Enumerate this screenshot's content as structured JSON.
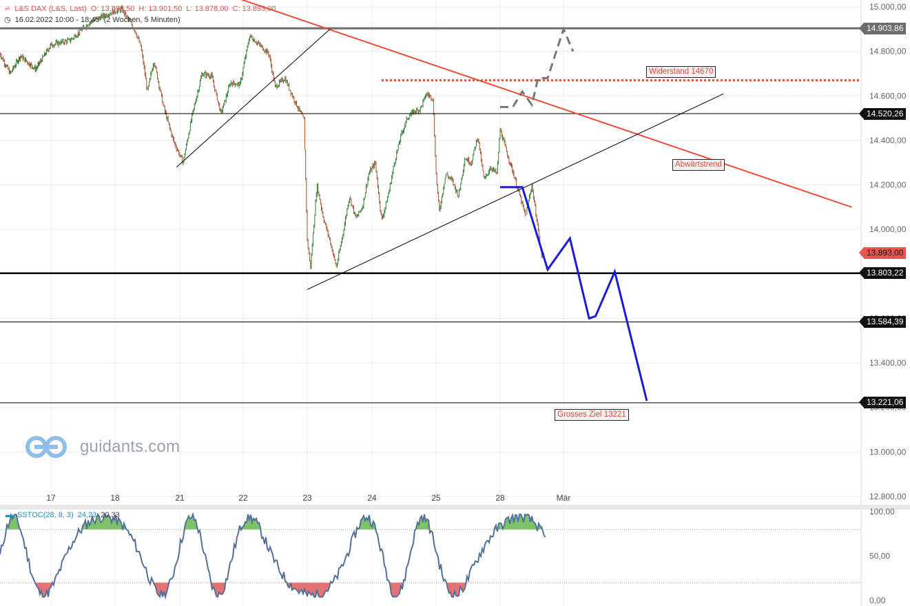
{
  "header": {
    "instrument": "L&S DAX (L&S, Last)",
    "open": "O: 13.899,50",
    "high": "H: 13.901,50",
    "low": "L: 13.878,00",
    "close": "C: 13.893,00",
    "range": "16.02.2022 10:00 - 18:45",
    "timeframe": "(2 Wochen, 5 Minuten)"
  },
  "colors": {
    "up": "#2e7d32",
    "down": "#a0522d",
    "trend_red": "#ee4b35",
    "forecast_blue": "#1a1adb",
    "forecast_gray": "#777777",
    "stoch_line": "#52709a",
    "stoch_hi": "#7cc36a",
    "stoch_lo": "#e57373"
  },
  "watermark": {
    "text": "guidants.com",
    "icon": "guidants-logo-icon"
  },
  "chart_data": {
    "type": "candlestick",
    "y_axis_ticks": [
      "15.000,00",
      "14.800,00",
      "14.600,00",
      "14.400,00",
      "14.200,00",
      "14.000,00",
      "13.800,00",
      "13.600,00",
      "13.400,00",
      "13.200,00",
      "13.000,00",
      "12.800,00"
    ],
    "ylim": [
      12800,
      15000
    ],
    "x_axis_ticks": [
      "17",
      "18",
      "21",
      "22",
      "23",
      "24",
      "25",
      "28",
      "Mär"
    ],
    "price_path": [
      {
        "d": 0.0,
        "p": 14790
      },
      {
        "d": 0.2,
        "p": 14700
      },
      {
        "d": 0.4,
        "p": 14780
      },
      {
        "d": 0.7,
        "p": 14720
      },
      {
        "d": 1.0,
        "p": 14830
      },
      {
        "d": 1.3,
        "p": 14850
      },
      {
        "d": 1.6,
        "p": 14930
      },
      {
        "d": 1.9,
        "p": 14970
      },
      {
        "d": 2.1,
        "p": 14990
      },
      {
        "d": 2.3,
        "p": 14900
      },
      {
        "d": 2.4,
        "p": 14820
      },
      {
        "d": 2.5,
        "p": 14620
      },
      {
        "d": 2.6,
        "p": 14760
      },
      {
        "d": 2.75,
        "p": 14550
      },
      {
        "d": 2.9,
        "p": 14400
      },
      {
        "d": 3.05,
        "p": 14300
      },
      {
        "d": 3.2,
        "p": 14520
      },
      {
        "d": 3.35,
        "p": 14700
      },
      {
        "d": 3.5,
        "p": 14690
      },
      {
        "d": 3.65,
        "p": 14520
      },
      {
        "d": 3.8,
        "p": 14660
      },
      {
        "d": 3.95,
        "p": 14650
      },
      {
        "d": 4.1,
        "p": 14870
      },
      {
        "d": 4.25,
        "p": 14830
      },
      {
        "d": 4.4,
        "p": 14790
      },
      {
        "d": 4.5,
        "p": 14640
      },
      {
        "d": 4.65,
        "p": 14680
      },
      {
        "d": 4.8,
        "p": 14580
      },
      {
        "d": 4.95,
        "p": 14490
      },
      {
        "d": 5.0,
        "p": 13950
      },
      {
        "d": 5.05,
        "p": 13830
      },
      {
        "d": 5.15,
        "p": 14200
      },
      {
        "d": 5.25,
        "p": 14050
      },
      {
        "d": 5.35,
        "p": 13950
      },
      {
        "d": 5.45,
        "p": 13830
      },
      {
        "d": 5.55,
        "p": 13980
      },
      {
        "d": 5.65,
        "p": 14150
      },
      {
        "d": 5.75,
        "p": 14050
      },
      {
        "d": 5.85,
        "p": 14100
      },
      {
        "d": 5.95,
        "p": 14250
      },
      {
        "d": 6.05,
        "p": 14300
      },
      {
        "d": 6.15,
        "p": 14040
      },
      {
        "d": 6.25,
        "p": 14150
      },
      {
        "d": 6.35,
        "p": 14300
      },
      {
        "d": 6.45,
        "p": 14420
      },
      {
        "d": 6.55,
        "p": 14500
      },
      {
        "d": 6.65,
        "p": 14530
      },
      {
        "d": 6.75,
        "p": 14540
      },
      {
        "d": 6.85,
        "p": 14610
      },
      {
        "d": 6.95,
        "p": 14590
      },
      {
        "d": 7.0,
        "p": 14250
      },
      {
        "d": 7.05,
        "p": 14080
      },
      {
        "d": 7.15,
        "p": 14250
      },
      {
        "d": 7.25,
        "p": 14220
      },
      {
        "d": 7.35,
        "p": 14150
      },
      {
        "d": 7.45,
        "p": 14320
      },
      {
        "d": 7.55,
        "p": 14300
      },
      {
        "d": 7.65,
        "p": 14420
      },
      {
        "d": 7.75,
        "p": 14220
      },
      {
        "d": 7.85,
        "p": 14280
      },
      {
        "d": 7.95,
        "p": 14250
      },
      {
        "d": 8.0,
        "p": 14450
      },
      {
        "d": 8.1,
        "p": 14350
      },
      {
        "d": 8.2,
        "p": 14260
      },
      {
        "d": 8.3,
        "p": 14160
      },
      {
        "d": 8.4,
        "p": 14060
      },
      {
        "d": 8.5,
        "p": 14200
      },
      {
        "d": 8.6,
        "p": 14000
      },
      {
        "d": 8.65,
        "p": 13880
      },
      {
        "d": 8.7,
        "p": 13893
      }
    ],
    "levels": [
      {
        "price": 14903.86,
        "label": "14.903,86",
        "style": "gray"
      },
      {
        "price": 14520.26,
        "label": "14.520,26",
        "style": "thin"
      },
      {
        "price": 13803.22,
        "label": "13.803,22",
        "style": "thick"
      },
      {
        "price": 13584.39,
        "label": "13.584,39",
        "style": "thin"
      },
      {
        "price": 13221.06,
        "label": "13.221,06",
        "style": "thin"
      }
    ],
    "last_price": {
      "price": 13893.0,
      "label": "13.893,00"
    },
    "resistance_dotted": {
      "price": 14670,
      "from_d": 6.15,
      "to_d": 13.5
    },
    "trendlines": [
      {
        "kind": "downtrend",
        "from": {
          "d": 3.9,
          "p": 15040
        },
        "to": {
          "d": 13.5,
          "p": 14100
        }
      },
      {
        "kind": "support-1",
        "from": {
          "d": 2.95,
          "p": 14280
        },
        "to": {
          "d": 5.35,
          "p": 14900
        }
      },
      {
        "kind": "support-2",
        "from": {
          "d": 5.0,
          "p": 13730
        },
        "to": {
          "d": 11.5,
          "p": 14610
        }
      }
    ],
    "forecast_bear": [
      {
        "d": 8.0,
        "p": 14190
      },
      {
        "d": 8.35,
        "p": 14190
      },
      {
        "d": 8.75,
        "p": 13820
      },
      {
        "d": 9.1,
        "p": 13960
      },
      {
        "d": 9.4,
        "p": 13600
      },
      {
        "d": 9.5,
        "p": 13610
      },
      {
        "d": 9.8,
        "p": 13810
      },
      {
        "d": 10.3,
        "p": 13230
      }
    ],
    "forecast_bull": [
      {
        "d": 8.0,
        "p": 14550
      },
      {
        "d": 8.2,
        "p": 14550
      },
      {
        "d": 8.35,
        "p": 14620
      },
      {
        "d": 8.5,
        "p": 14560
      },
      {
        "d": 8.6,
        "p": 14680
      },
      {
        "d": 8.75,
        "p": 14680
      },
      {
        "d": 9.0,
        "p": 14900
      },
      {
        "d": 9.15,
        "p": 14800
      }
    ],
    "annotations": [
      {
        "text": "Widerstand 14670"
      },
      {
        "text": "Abwärtstrend"
      },
      {
        "text": "Grosses Ziel 13221"
      }
    ],
    "indicator": {
      "name": "SSTOC(28, 8, 3)",
      "value1": "24,23",
      "value2": "20,33",
      "y_ticks": [
        "100,00",
        "50,00",
        "0,00"
      ],
      "ylim": [
        0,
        100
      ],
      "upper_band": 80,
      "lower_band": 20
    }
  }
}
